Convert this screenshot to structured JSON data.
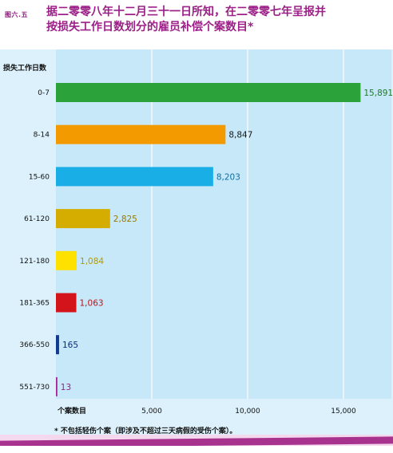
{
  "figure_label": "图六.五",
  "title_line1": "据二零零八年十二月三十一日所知，在二零零七年呈报并",
  "title_line2": "按损失工作日数划分的雇员补偿个案数目*",
  "footnote": "* 不包括轻伤个案（即涉及不超过三天病假的受伤个案）。",
  "chart_data": {
    "type": "bar",
    "orientation": "horizontal",
    "ylabel": "损失工作日数",
    "xlabel": "个案数目",
    "xlim": [
      0,
      17500
    ],
    "xticks": [
      5000,
      10000,
      15000
    ],
    "xtick_labels": [
      "5,000",
      "10,000",
      "15,000"
    ],
    "grid": true,
    "categories": [
      "0-7",
      "8-14",
      "15-60",
      "61-120",
      "121-180",
      "181-365",
      "366-550",
      "551-730"
    ],
    "values": [
      15891,
      8847,
      8203,
      2825,
      1084,
      1063,
      165,
      13
    ],
    "value_labels": [
      "15,891",
      "8,847",
      "8,203",
      "2,825",
      "1,084",
      "1,063",
      "165",
      "13"
    ],
    "colors": [
      "#2ca33a",
      "#f39a00",
      "#19aee6",
      "#d4ad00",
      "#ffe100",
      "#d3141b",
      "#123a8f",
      "#a6248f"
    ],
    "label_colors": [
      "#1f7a2b",
      "#1a1a1a",
      "#0e6fa3",
      "#9a7a00",
      "#b59a00",
      "#c3111a",
      "#0e2c7a",
      "#9b1f87"
    ]
  }
}
